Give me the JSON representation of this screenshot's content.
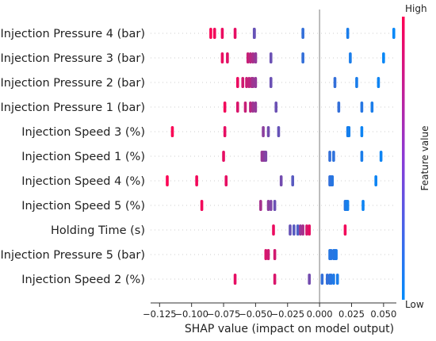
{
  "chart_data": {
    "type": "scatter",
    "subtype": "shap-beeswarm-summary",
    "xlabel": "SHAP value (impact on model output)",
    "xlim": [
      -0.132,
      0.06
    ],
    "xticks": [
      -0.125,
      -0.1,
      -0.075,
      -0.05,
      -0.025,
      0.0,
      0.025,
      0.05
    ],
    "xtick_labels": [
      "−0.125",
      "−0.100",
      "−0.075",
      "−0.050",
      "−0.025",
      "0.000",
      "0.025",
      "0.050"
    ],
    "zero_line": 0.0,
    "colorbar": {
      "label": "Feature value",
      "high_label": "High",
      "low_label": "Low",
      "high_color": "#ff0052",
      "low_color": "#008bfb"
    },
    "features": [
      {
        "name": "Injection Pressure 4 (bar)",
        "points": [
          [
            -0.085,
            0.98
          ],
          [
            -0.082,
            0.95
          ],
          [
            -0.076,
            0.92
          ],
          [
            -0.066,
            0.9
          ],
          [
            -0.051,
            0.55
          ],
          [
            -0.051,
            0.5
          ],
          [
            -0.051,
            0.45
          ],
          [
            -0.051,
            0.4
          ],
          [
            -0.013,
            0.2
          ],
          [
            0.022,
            0.1
          ],
          [
            0.058,
            0.02
          ]
        ]
      },
      {
        "name": "Injection Pressure 3 (bar)",
        "points": [
          [
            -0.076,
            0.92
          ],
          [
            -0.072,
            0.88
          ],
          [
            -0.056,
            0.78
          ],
          [
            -0.054,
            0.72
          ],
          [
            -0.052,
            0.66
          ],
          [
            -0.05,
            0.6
          ],
          [
            -0.05,
            0.58
          ],
          [
            -0.038,
            0.42
          ],
          [
            -0.013,
            0.2
          ],
          [
            0.024,
            0.1
          ],
          [
            0.05,
            0.03
          ]
        ]
      },
      {
        "name": "Injection Pressure 2 (bar)",
        "points": [
          [
            -0.064,
            0.92
          ],
          [
            -0.06,
            0.82
          ],
          [
            -0.057,
            0.78
          ],
          [
            -0.055,
            0.74
          ],
          [
            -0.053,
            0.68
          ],
          [
            -0.052,
            0.62
          ],
          [
            -0.05,
            0.58
          ],
          [
            -0.038,
            0.42
          ],
          [
            0.012,
            0.2
          ],
          [
            0.029,
            0.1
          ],
          [
            0.046,
            0.05
          ]
        ]
      },
      {
        "name": "Injection Pressure 1 (bar)",
        "points": [
          [
            -0.074,
            0.95
          ],
          [
            -0.064,
            0.85
          ],
          [
            -0.058,
            0.78
          ],
          [
            -0.054,
            0.72
          ],
          [
            -0.052,
            0.62
          ],
          [
            -0.05,
            0.58
          ],
          [
            -0.034,
            0.42
          ],
          [
            0.015,
            0.2
          ],
          [
            0.033,
            0.15
          ],
          [
            0.041,
            0.1
          ]
        ]
      },
      {
        "name": "Injection Speed 3 (%)",
        "points": [
          [
            -0.115,
            0.98
          ],
          [
            -0.074,
            0.9
          ],
          [
            -0.044,
            0.55
          ],
          [
            -0.04,
            0.45
          ],
          [
            -0.032,
            0.4
          ],
          [
            0.022,
            0.1
          ],
          [
            0.023,
            0.08
          ],
          [
            0.033,
            0.05
          ]
        ]
      },
      {
        "name": "Injection Speed 1 (%)",
        "points": [
          [
            -0.075,
            0.9
          ],
          [
            -0.045,
            0.6
          ],
          [
            -0.044,
            0.58
          ],
          [
            -0.043,
            0.55
          ],
          [
            -0.042,
            0.5
          ],
          [
            0.008,
            0.2
          ],
          [
            0.011,
            0.18
          ],
          [
            0.033,
            0.1
          ],
          [
            0.048,
            0.05
          ]
        ]
      },
      {
        "name": "Injection Speed 4 (%)",
        "points": [
          [
            -0.119,
            0.99
          ],
          [
            -0.096,
            0.95
          ],
          [
            -0.073,
            0.9
          ],
          [
            -0.03,
            0.45
          ],
          [
            -0.021,
            0.35
          ],
          [
            0.008,
            0.2
          ],
          [
            0.009,
            0.18
          ],
          [
            0.01,
            0.15
          ],
          [
            0.044,
            0.05
          ]
        ]
      },
      {
        "name": "Injection Speed 5 (%)",
        "points": [
          [
            -0.092,
            0.95
          ],
          [
            -0.046,
            0.65
          ],
          [
            -0.04,
            0.55
          ],
          [
            -0.038,
            0.5
          ],
          [
            -0.035,
            0.42
          ],
          [
            0.02,
            0.15
          ],
          [
            0.021,
            0.1
          ],
          [
            0.022,
            0.08
          ],
          [
            0.034,
            0.05
          ]
        ]
      },
      {
        "name": "Holding Time (s)",
        "points": [
          [
            -0.036,
            0.92
          ],
          [
            -0.023,
            0.4
          ],
          [
            -0.02,
            0.35
          ],
          [
            -0.017,
            0.3
          ],
          [
            -0.015,
            0.6
          ],
          [
            -0.013,
            0.65
          ],
          [
            -0.01,
            0.85
          ],
          [
            -0.008,
            0.9
          ],
          [
            0.02,
            0.95
          ]
        ]
      },
      {
        "name": "Injection Pressure 5 (bar)",
        "points": [
          [
            -0.042,
            0.85
          ],
          [
            -0.04,
            0.8
          ],
          [
            -0.035,
            0.82
          ],
          [
            0.008,
            0.15
          ],
          [
            0.009,
            0.15
          ],
          [
            0.011,
            0.15
          ],
          [
            0.012,
            0.15
          ],
          [
            0.013,
            0.12
          ]
        ]
      },
      {
        "name": "Injection Speed 2 (%)",
        "points": [
          [
            -0.066,
            0.9
          ],
          [
            -0.035,
            0.85
          ],
          [
            -0.008,
            0.45
          ],
          [
            0.002,
            0.2
          ],
          [
            0.006,
            0.2
          ],
          [
            0.008,
            0.18
          ],
          [
            0.009,
            0.15
          ],
          [
            0.011,
            0.12
          ],
          [
            0.014,
            0.1
          ]
        ]
      }
    ]
  }
}
